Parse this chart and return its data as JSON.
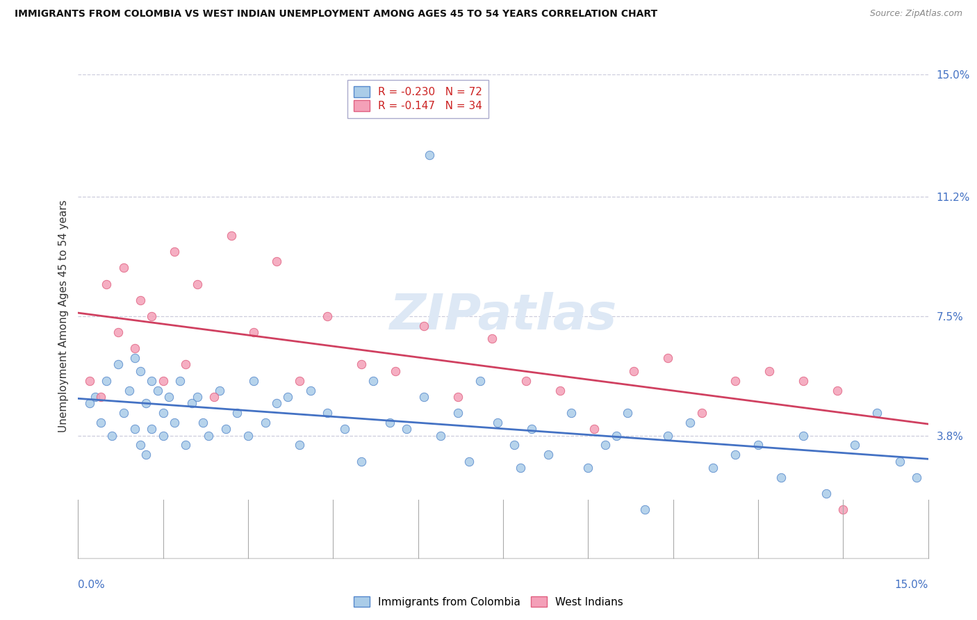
{
  "title": "IMMIGRANTS FROM COLOMBIA VS WEST INDIAN UNEMPLOYMENT AMONG AGES 45 TO 54 YEARS CORRELATION CHART",
  "source": "Source: ZipAtlas.com",
  "ylabel": "Unemployment Among Ages 45 to 54 years",
  "xlim": [
    0.0,
    15.0
  ],
  "ylim": [
    0.0,
    15.0
  ],
  "y_ticks": [
    3.8,
    7.5,
    11.2,
    15.0
  ],
  "y_tick_labels": [
    "3.8%",
    "7.5%",
    "11.2%",
    "15.0%"
  ],
  "colombia_R": -0.23,
  "colombia_N": 72,
  "westindian_R": -0.147,
  "westindian_N": 34,
  "colombia_color": "#aacce8",
  "westindian_color": "#f4a0b8",
  "colombia_edge_color": "#5588cc",
  "westindian_edge_color": "#e06080",
  "colombia_line_color": "#4472c4",
  "westindian_line_color": "#d04060",
  "watermark_color": "#dde8f5",
  "grid_color": "#ccccdd",
  "title_color": "#111111",
  "source_color": "#888888",
  "tick_label_color": "#4472c4",
  "colombia_scatter_x": [
    0.2,
    0.3,
    0.4,
    0.5,
    0.6,
    0.7,
    0.8,
    0.9,
    1.0,
    1.0,
    1.1,
    1.1,
    1.2,
    1.2,
    1.3,
    1.3,
    1.4,
    1.5,
    1.5,
    1.6,
    1.7,
    1.8,
    1.9,
    2.0,
    2.1,
    2.2,
    2.3,
    2.5,
    2.6,
    2.8,
    3.0,
    3.1,
    3.3,
    3.5,
    3.7,
    3.9,
    4.1,
    4.4,
    4.7,
    5.0,
    5.2,
    5.5,
    5.8,
    6.1,
    6.4,
    6.7,
    6.9,
    7.1,
    7.4,
    7.7,
    8.0,
    8.3,
    8.7,
    9.0,
    9.3,
    9.7,
    10.0,
    10.4,
    10.8,
    11.2,
    11.6,
    12.0,
    12.4,
    12.8,
    13.2,
    13.7,
    14.1,
    14.5,
    14.8,
    9.5,
    7.8,
    6.2
  ],
  "colombia_scatter_y": [
    4.8,
    5.0,
    4.2,
    5.5,
    3.8,
    6.0,
    4.5,
    5.2,
    4.0,
    6.2,
    3.5,
    5.8,
    4.8,
    3.2,
    5.5,
    4.0,
    5.2,
    4.5,
    3.8,
    5.0,
    4.2,
    5.5,
    3.5,
    4.8,
    5.0,
    4.2,
    3.8,
    5.2,
    4.0,
    4.5,
    3.8,
    5.5,
    4.2,
    4.8,
    5.0,
    3.5,
    5.2,
    4.5,
    4.0,
    3.0,
    5.5,
    4.2,
    4.0,
    5.0,
    3.8,
    4.5,
    3.0,
    5.5,
    4.2,
    3.5,
    4.0,
    3.2,
    4.5,
    2.8,
    3.5,
    4.5,
    1.5,
    3.8,
    4.2,
    2.8,
    3.2,
    3.5,
    2.5,
    3.8,
    2.0,
    3.5,
    4.5,
    3.0,
    2.5,
    3.8,
    2.8,
    12.5
  ],
  "westindian_scatter_x": [
    0.2,
    0.4,
    0.5,
    0.7,
    0.8,
    1.0,
    1.1,
    1.3,
    1.5,
    1.7,
    1.9,
    2.1,
    2.4,
    2.7,
    3.1,
    3.5,
    3.9,
    4.4,
    5.0,
    5.6,
    6.1,
    6.7,
    7.3,
    7.9,
    8.5,
    9.1,
    9.8,
    10.4,
    11.0,
    11.6,
    12.2,
    12.8,
    13.4,
    13.5
  ],
  "westindian_scatter_y": [
    5.5,
    5.0,
    8.5,
    7.0,
    9.0,
    6.5,
    8.0,
    7.5,
    5.5,
    9.5,
    6.0,
    8.5,
    5.0,
    10.0,
    7.0,
    9.2,
    5.5,
    7.5,
    6.0,
    5.8,
    7.2,
    5.0,
    6.8,
    5.5,
    5.2,
    4.0,
    5.8,
    6.2,
    4.5,
    5.5,
    5.8,
    5.5,
    5.2,
    1.5
  ]
}
